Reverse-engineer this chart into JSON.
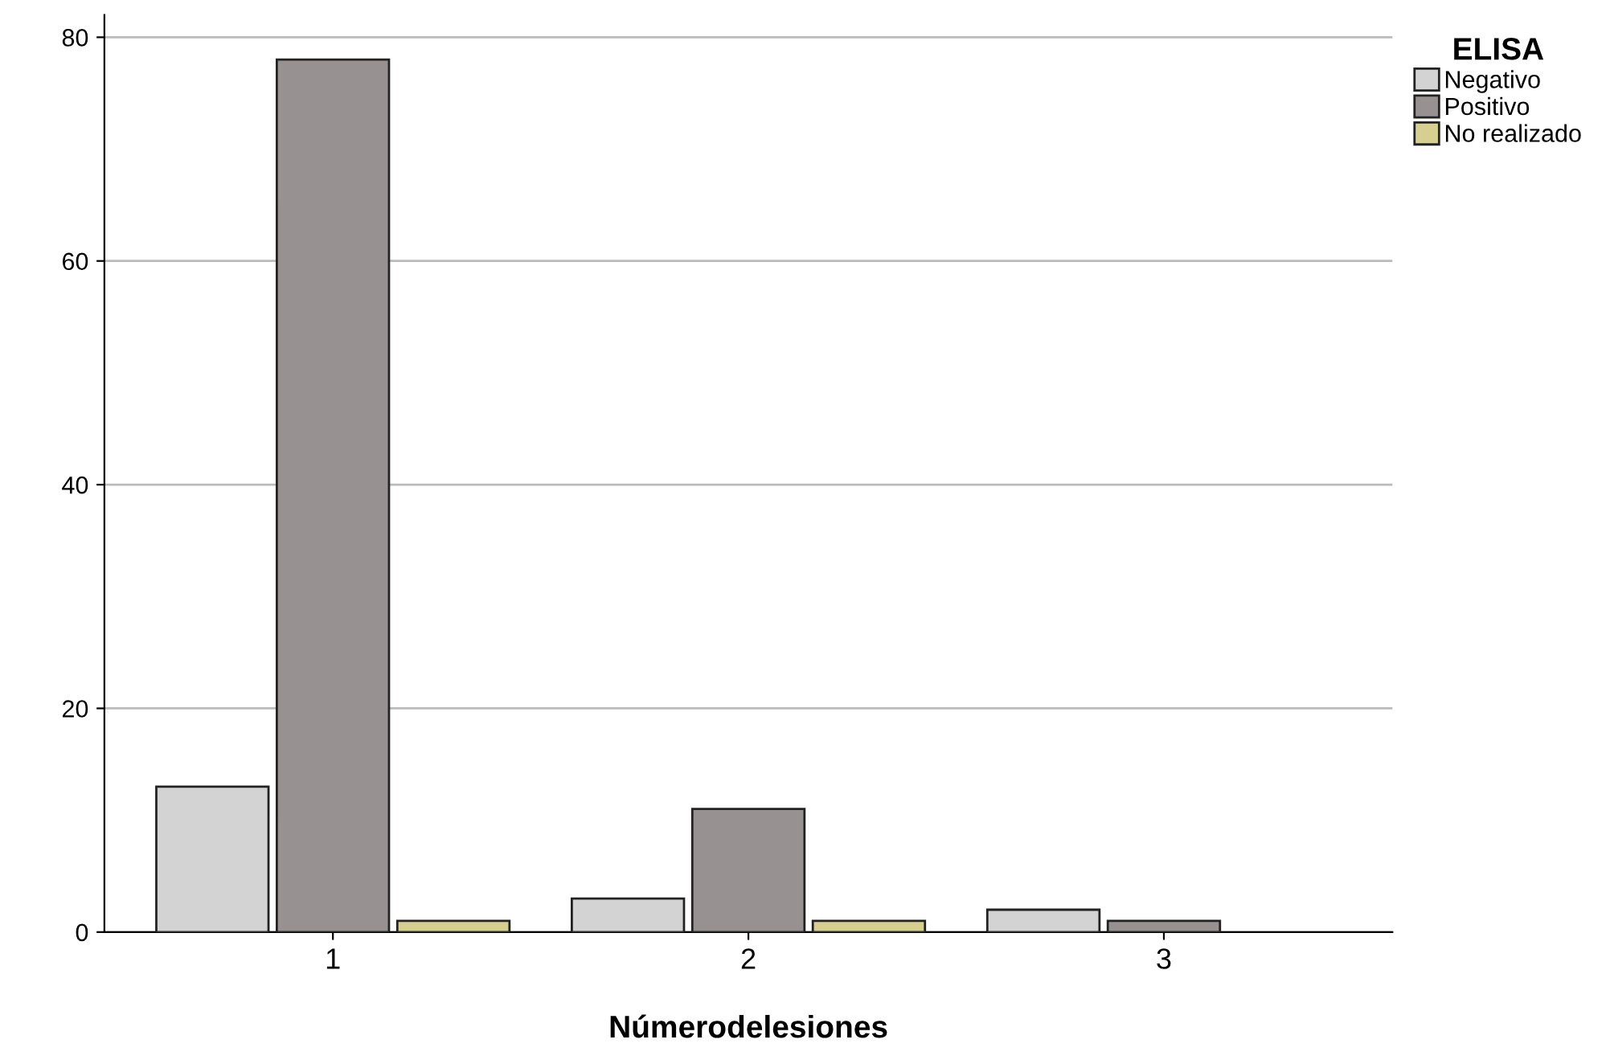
{
  "chart_data": {
    "type": "bar",
    "xlabel": "Númerodelesiones",
    "legend_title": "ELISA",
    "categories": [
      "1",
      "2",
      "3"
    ],
    "series": [
      {
        "name": "Negativo",
        "color": "#d3d3d3",
        "values": [
          13,
          3,
          2
        ]
      },
      {
        "name": "Positivo",
        "color": "#979291",
        "values": [
          78,
          11,
          1
        ]
      },
      {
        "name": "No realizado",
        "color": "#d6cf8f",
        "values": [
          1,
          1,
          null
        ]
      }
    ],
    "ylim": [
      0,
      82
    ],
    "yticks": [
      0,
      20,
      40,
      60,
      80
    ],
    "grid": "y",
    "legend": "top right"
  }
}
